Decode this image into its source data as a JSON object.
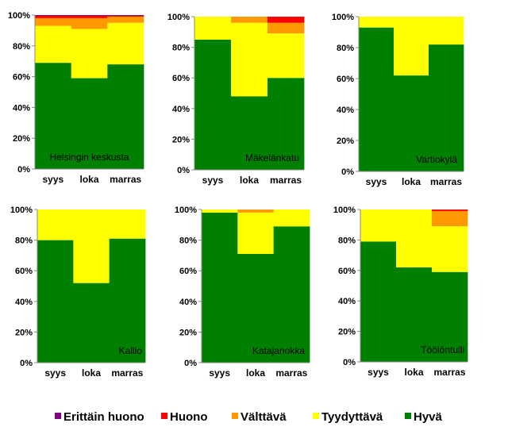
{
  "chart_data": {
    "type": "bar",
    "stacked": true,
    "normalized": true,
    "ylim": [
      0,
      100
    ],
    "yticks": [
      "0%",
      "20%",
      "40%",
      "60%",
      "80%",
      "100%"
    ],
    "categories": [
      "syys",
      "loka",
      "marras"
    ],
    "series_order": [
      "Hyvä",
      "Tyydyttävä",
      "Välttävä",
      "Huono",
      "Erittäin huono"
    ],
    "colors": {
      "Hyvä": "#008000",
      "Tyydyttävä": "#ffff00",
      "Välttävä": "#ff9900",
      "Huono": "#ff0000",
      "Erittäin huono": "#800080"
    },
    "panels": [
      {
        "title": "Helsingin keskusta",
        "values": {
          "Hyvä": [
            69,
            59,
            68
          ],
          "Tyydyttävä": [
            24,
            32,
            27
          ],
          "Välttävä": [
            5,
            7,
            4
          ],
          "Huono": [
            1.5,
            1.5,
            0.5
          ],
          "Erittäin huono": [
            0.5,
            0.5,
            0.5
          ]
        }
      },
      {
        "title": "Mäkelänkatu",
        "values": {
          "Hyvä": [
            85,
            48,
            60
          ],
          "Tyydyttävä": [
            15,
            48,
            29
          ],
          "Välttävä": [
            0,
            4,
            7
          ],
          "Huono": [
            0,
            0,
            4
          ],
          "Erittäin huono": [
            0,
            0,
            0
          ]
        }
      },
      {
        "title": "Vartiokylä",
        "values": {
          "Hyvä": [
            93,
            62,
            82
          ],
          "Tyydyttävä": [
            7,
            38,
            18
          ],
          "Välttävä": [
            0,
            0,
            0
          ],
          "Huono": [
            0,
            0,
            0
          ],
          "Erittäin huono": [
            0,
            0,
            0
          ]
        }
      },
      {
        "title": "Kallio",
        "values": {
          "Hyvä": [
            80,
            52,
            81
          ],
          "Tyydyttävä": [
            20,
            48,
            19
          ],
          "Välttävä": [
            0,
            0,
            0
          ],
          "Huono": [
            0,
            0,
            0
          ],
          "Erittäin huono": [
            0,
            0,
            0
          ]
        }
      },
      {
        "title": "Katajanokka",
        "values": {
          "Hyvä": [
            98,
            71,
            89
          ],
          "Tyydyttävä": [
            2,
            27,
            11
          ],
          "Välttävä": [
            0,
            2,
            0
          ],
          "Huono": [
            0,
            0,
            0
          ],
          "Erittäin huono": [
            0,
            0,
            0
          ]
        }
      },
      {
        "title": "Töölöntulli",
        "values": {
          "Hyvä": [
            79,
            62,
            59
          ],
          "Tyydyttävä": [
            21,
            38,
            30
          ],
          "Välttävä": [
            0,
            0,
            10
          ],
          "Huono": [
            0,
            0,
            1
          ],
          "Erittäin huono": [
            0,
            0,
            0
          ]
        }
      }
    ],
    "legend": [
      "Erittäin huono",
      "Huono",
      "Välttävä",
      "Tyydyttävä",
      "Hyvä"
    ],
    "legend_position": "bottom"
  }
}
